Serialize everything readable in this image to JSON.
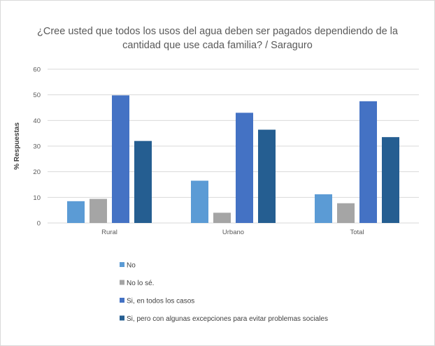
{
  "chart_data": {
    "type": "bar",
    "title_lines": [
      "¿Cree usted que todos los usos del agua deben ser pagados dependiendo de la",
      "cantidad que use cada familia? / Saraguro"
    ],
    "ylabel": "% Respuestas",
    "xlabel": "",
    "ylim": [
      0,
      60
    ],
    "yticks": [
      0,
      10,
      20,
      30,
      40,
      50,
      60
    ],
    "grid": true,
    "legend_position": "bottom",
    "categories": [
      "Rural",
      "Urbano",
      "Total"
    ],
    "series": [
      {
        "name": "No",
        "color": "#5b9bd5",
        "values": [
          8.5,
          16.5,
          11.2
        ]
      },
      {
        "name": "No lo sé.",
        "color": "#a5a5a5",
        "values": [
          9.4,
          4.0,
          7.7
        ]
      },
      {
        "name": "Si, en todos los casos",
        "color": "#4472c4",
        "values": [
          49.8,
          43.0,
          47.5
        ]
      },
      {
        "name": "Si, pero con algunas excepciones para evitar problemas sociales",
        "color": "#255e91",
        "values": [
          32.0,
          36.4,
          33.5
        ]
      }
    ]
  }
}
